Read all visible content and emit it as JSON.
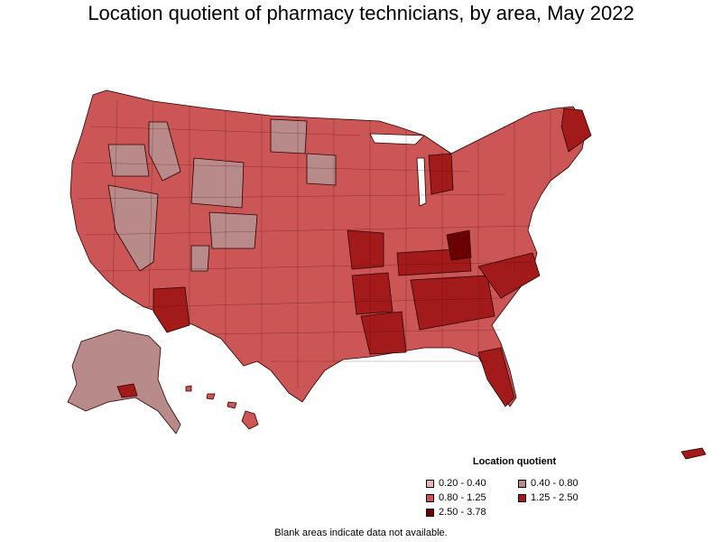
{
  "title": "Location quotient of pharmacy technicians, by area, May 2022",
  "legend": {
    "title": "Location quotient",
    "items": [
      {
        "label": "0.20 - 0.40",
        "color": "#e8b8b8"
      },
      {
        "label": "0.40 - 0.80",
        "color": "#b98a8a"
      },
      {
        "label": "0.80 - 1.25",
        "color": "#cc5555"
      },
      {
        "label": "1.25 - 2.50",
        "color": "#a31a1a"
      },
      {
        "label": "2.50 - 3.78",
        "color": "#6b0000"
      }
    ]
  },
  "footnote": "Blank areas indicate data not available.",
  "colors": {
    "low": "#e8b8b8",
    "lowmid": "#b98a8a",
    "mid": "#cc5555",
    "high": "#a31a1a",
    "top": "#6b0000"
  }
}
